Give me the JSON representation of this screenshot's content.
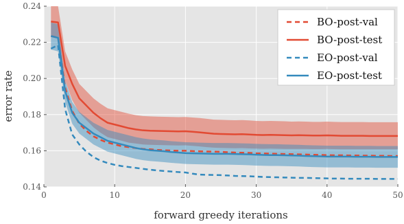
{
  "chart_data": {
    "type": "line",
    "xlabel": "forward greedy iterations",
    "ylabel": "error rate",
    "xlim": [
      0,
      50
    ],
    "ylim": [
      0.14,
      0.24
    ],
    "x_ticks": [
      0,
      10,
      20,
      30,
      40,
      50
    ],
    "x_tick_labels": [
      "0",
      "10",
      "20",
      "30",
      "40",
      "50"
    ],
    "y_ticks": [
      0.14,
      0.16,
      0.18,
      0.2,
      0.22,
      0.24
    ],
    "y_tick_labels": [
      "0.14",
      "0.16",
      "0.18",
      "0.20",
      "0.22",
      "0.24"
    ],
    "grid": true,
    "background": "#e5e5e5",
    "legend_position": "top-right",
    "x": [
      1,
      2,
      3,
      4,
      5,
      6,
      7,
      8,
      9,
      10,
      11,
      12,
      13,
      14,
      15,
      16,
      17,
      18,
      19,
      20,
      21,
      22,
      23,
      24,
      25,
      26,
      27,
      28,
      29,
      30,
      31,
      32,
      33,
      34,
      35,
      36,
      37,
      38,
      39,
      40,
      41,
      42,
      43,
      44,
      45,
      46,
      47,
      48,
      49,
      50
    ],
    "series": [
      {
        "name": "BO-post-val",
        "color": "#e24a33",
        "style": "dashed",
        "values": [
          0.2235,
          0.2225,
          0.195,
          0.182,
          0.175,
          0.171,
          0.168,
          0.166,
          0.1645,
          0.1635,
          0.1625,
          0.162,
          0.1615,
          0.161,
          0.1608,
          0.1605,
          0.1603,
          0.1601,
          0.16,
          0.16,
          0.1598,
          0.1597,
          0.1596,
          0.1595,
          0.1594,
          0.1592,
          0.159,
          0.1589,
          0.1588,
          0.1586,
          0.1585,
          0.1584,
          0.1583,
          0.1582,
          0.1581,
          0.158,
          0.1579,
          0.1578,
          0.1577,
          0.1576,
          0.1575,
          0.1575,
          0.1574,
          0.1574,
          0.1573,
          0.1573,
          0.1572,
          0.1572,
          0.1571,
          0.1571
        ]
      },
      {
        "name": "BO-post-test",
        "color": "#e24a33",
        "style": "solid",
        "values": [
          0.2315,
          0.231,
          0.207,
          0.197,
          0.189,
          0.185,
          0.181,
          0.178,
          0.1755,
          0.1745,
          0.1735,
          0.1725,
          0.1718,
          0.1713,
          0.1711,
          0.171,
          0.1709,
          0.1708,
          0.1707,
          0.1708,
          0.1705,
          0.1702,
          0.1698,
          0.1694,
          0.1693,
          0.1692,
          0.1691,
          0.1692,
          0.169,
          0.1688,
          0.1687,
          0.1688,
          0.1687,
          0.1686,
          0.1685,
          0.1686,
          0.1685,
          0.1684,
          0.1684,
          0.1685,
          0.1684,
          0.1683,
          0.1683,
          0.1683,
          0.1683,
          0.1682,
          0.1682,
          0.1682,
          0.1682,
          0.1682
        ],
        "band_lower": [
          0.224,
          0.223,
          0.199,
          0.188,
          0.181,
          0.177,
          0.173,
          0.17,
          0.1675,
          0.1665,
          0.1655,
          0.1645,
          0.164,
          0.1635,
          0.1633,
          0.1632,
          0.1631,
          0.163,
          0.1629,
          0.163,
          0.1627,
          0.1624,
          0.162,
          0.1617,
          0.1616,
          0.1615,
          0.1614,
          0.1615,
          0.1613,
          0.1612,
          0.1611,
          0.1612,
          0.1611,
          0.161,
          0.161,
          0.161,
          0.161,
          0.1609,
          0.1609,
          0.161,
          0.1609,
          0.1608,
          0.1608,
          0.1608,
          0.1608,
          0.1608,
          0.1608,
          0.1608,
          0.1608,
          0.1608
        ],
        "band_upper": [
          0.24,
          0.24,
          0.215,
          0.205,
          0.197,
          0.193,
          0.189,
          0.186,
          0.1835,
          0.1825,
          0.1815,
          0.1805,
          0.1797,
          0.1792,
          0.179,
          0.1789,
          0.1788,
          0.1787,
          0.1786,
          0.1787,
          0.1784,
          0.1781,
          0.1777,
          0.1772,
          0.1771,
          0.177,
          0.1769,
          0.177,
          0.1768,
          0.1765,
          0.1764,
          0.1765,
          0.1764,
          0.1763,
          0.1761,
          0.1762,
          0.1761,
          0.176,
          0.176,
          0.1761,
          0.176,
          0.1759,
          0.1759,
          0.1759,
          0.1759,
          0.1758,
          0.1758,
          0.1758,
          0.1758,
          0.1758
        ]
      },
      {
        "name": "EO-post-val",
        "color": "#348abd",
        "style": "dashed",
        "values": [
          0.2165,
          0.2185,
          0.183,
          0.169,
          0.1635,
          0.1595,
          0.1565,
          0.1545,
          0.1532,
          0.1522,
          0.1515,
          0.151,
          0.1505,
          0.15,
          0.1495,
          0.1491,
          0.1488,
          0.1485,
          0.1482,
          0.148,
          0.1473,
          0.1468,
          0.1467,
          0.1466,
          0.1465,
          0.1463,
          0.1461,
          0.146,
          0.1459,
          0.1457,
          0.1455,
          0.1454,
          0.1453,
          0.1452,
          0.1451,
          0.145,
          0.145,
          0.1449,
          0.1448,
          0.1447,
          0.1446,
          0.1446,
          0.1445,
          0.1445,
          0.1445,
          0.1445,
          0.1444,
          0.1444,
          0.1444,
          0.1444
        ]
      },
      {
        "name": "EO-post-test",
        "color": "#348abd",
        "style": "solid",
        "values": [
          0.2235,
          0.2225,
          0.193,
          0.181,
          0.1755,
          0.1725,
          0.1695,
          0.1675,
          0.1655,
          0.1645,
          0.1635,
          0.1625,
          0.1615,
          0.1608,
          0.1603,
          0.16,
          0.1597,
          0.1593,
          0.159,
          0.1587,
          0.1586,
          0.1585,
          0.1584,
          0.1583,
          0.1583,
          0.1583,
          0.1582,
          0.1581,
          0.158,
          0.1578,
          0.1577,
          0.1576,
          0.1576,
          0.1575,
          0.1574,
          0.1573,
          0.1571,
          0.157,
          0.1569,
          0.1568,
          0.1568,
          0.1568,
          0.1568,
          0.1567,
          0.1567,
          0.1567,
          0.1566,
          0.1566,
          0.1566,
          0.1566
        ],
        "band_lower": [
          0.216,
          0.215,
          0.187,
          0.175,
          0.1695,
          0.1665,
          0.1635,
          0.1615,
          0.1595,
          0.1585,
          0.1575,
          0.1565,
          0.1555,
          0.1548,
          0.1543,
          0.154,
          0.1537,
          0.1533,
          0.153,
          0.1527,
          0.1526,
          0.1525,
          0.1524,
          0.1523,
          0.1523,
          0.1523,
          0.1522,
          0.1521,
          0.152,
          0.1518,
          0.1517,
          0.1516,
          0.1516,
          0.1515,
          0.1514,
          0.1513,
          0.1511,
          0.151,
          0.1509,
          0.1508,
          0.1508,
          0.1508,
          0.1508,
          0.1507,
          0.1507,
          0.1507,
          0.1506,
          0.1506,
          0.1506,
          0.1506
        ],
        "band_upper": [
          0.231,
          0.23,
          0.199,
          0.187,
          0.1815,
          0.1785,
          0.1755,
          0.1735,
          0.1715,
          0.1705,
          0.1695,
          0.1685,
          0.1675,
          0.1668,
          0.1663,
          0.166,
          0.1657,
          0.1653,
          0.165,
          0.1647,
          0.1646,
          0.1645,
          0.1644,
          0.1643,
          0.1643,
          0.1643,
          0.1642,
          0.1641,
          0.164,
          0.1638,
          0.1637,
          0.1636,
          0.1636,
          0.1635,
          0.1634,
          0.1633,
          0.1631,
          0.163,
          0.1629,
          0.1628,
          0.1628,
          0.1628,
          0.1628,
          0.1627,
          0.1627,
          0.1627,
          0.1626,
          0.1626,
          0.1626,
          0.1626
        ]
      }
    ]
  }
}
